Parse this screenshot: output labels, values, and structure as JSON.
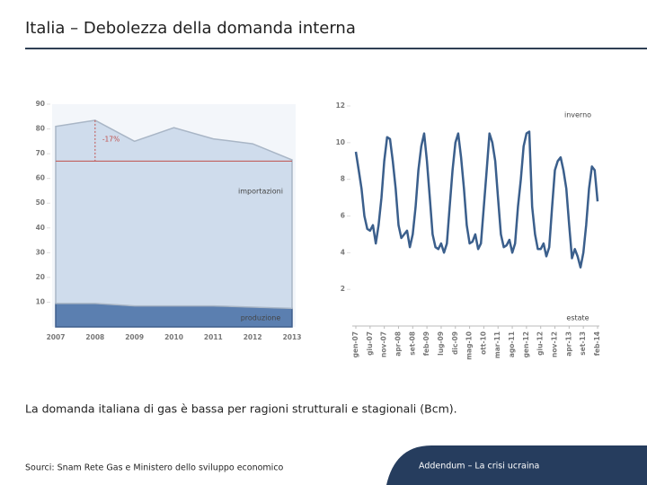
{
  "title": "Italia – Debolezza della domanda interna",
  "caption": "La domanda italiana di gas è bassa per ragioni strutturali e stagionali (Bcm).",
  "source": "Sourci: Snam Rete Gas e Ministero dello sviluppo economico",
  "footer": "Addendum – La crisi ucraina",
  "chart_data": [
    {
      "type": "area",
      "categories": [
        "2007",
        "2008",
        "2009",
        "2010",
        "2011",
        "2012",
        "2013"
      ],
      "series": [
        {
          "name": "produzione",
          "color": "#5b7fb0",
          "values": [
            9.5,
            9.5,
            8.5,
            8.5,
            8.5,
            8,
            7.5
          ]
        },
        {
          "name": "importazioni",
          "color": "#cfdcec",
          "values": [
            71.5,
            74,
            66.5,
            72,
            67.5,
            66,
            60
          ]
        }
      ],
      "reference": {
        "value": 67,
        "label": "-17%",
        "color": "#c0504d"
      },
      "ylim": [
        0,
        90
      ],
      "yticks": [
        10,
        20,
        30,
        40,
        50,
        60,
        70,
        80,
        90
      ]
    },
    {
      "type": "line",
      "categories": [
        "gen-07",
        null,
        null,
        null,
        null,
        "giu-07",
        null,
        null,
        null,
        null,
        "nov-07",
        null,
        null,
        null,
        null,
        "apr-08",
        null,
        null,
        null,
        null,
        "set-08",
        null,
        null,
        null,
        null,
        "feb-09",
        null,
        null,
        null,
        null,
        "lug-09",
        null,
        null,
        null,
        null,
        "dic-09",
        null,
        null,
        null,
        null,
        "mag-10",
        null,
        null,
        null,
        null,
        "ott-10",
        null,
        null,
        null,
        null,
        "mar-11",
        null,
        null,
        null,
        null,
        "ago-11",
        null,
        null,
        null,
        null,
        "gen-12",
        null,
        null,
        null,
        null,
        "giu-12",
        null,
        null,
        null,
        null,
        "nov-12",
        null,
        null,
        null,
        null,
        "apr-13",
        null,
        null,
        null,
        null,
        "set-13",
        null,
        null,
        null,
        null,
        "feb-14"
      ],
      "values": [
        9.5,
        8.5,
        7.5,
        6,
        5.3,
        5.2,
        5.5,
        4.5,
        5.5,
        7,
        9,
        10.3,
        10.2,
        9,
        7.5,
        5.5,
        4.8,
        5,
        5.2,
        4.3,
        5,
        6.5,
        8.5,
        9.8,
        10.5,
        9,
        7,
        5,
        4.3,
        4.2,
        4.5,
        4,
        4.5,
        6.5,
        8.5,
        10,
        10.5,
        9.2,
        7.5,
        5.5,
        4.5,
        4.6,
        5,
        4.2,
        4.5,
        6.5,
        8.5,
        10.5,
        10,
        9,
        7,
        5,
        4.3,
        4.4,
        4.7,
        4,
        4.5,
        6.5,
        8,
        9.8,
        10.5,
        10.6,
        6.5,
        5,
        4.2,
        4.2,
        4.5,
        3.8,
        4.3,
        6.5,
        8.5,
        9,
        9.2,
        8.5,
        7.5,
        5.5,
        3.7,
        4.2,
        3.8,
        3.2,
        4,
        5.5,
        7.5,
        8.7,
        8.5,
        6.8
      ],
      "color": "#3b5f8c",
      "annotations": [
        "inverno",
        "estate"
      ],
      "ylim": [
        0,
        12
      ],
      "yticks": [
        2,
        4,
        6,
        8,
        10,
        12
      ]
    }
  ]
}
